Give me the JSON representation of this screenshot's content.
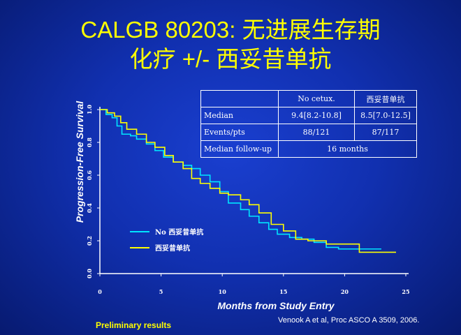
{
  "title": {
    "line1": "CALGB 80203: 无进展生存期",
    "line2": "化疗 +/- 西妥昔单抗"
  },
  "table": {
    "headers": [
      "",
      "No cetux.",
      "西妥昔单抗"
    ],
    "rows": [
      [
        "Median",
        "9.4[8.2-10.8]",
        "8.5[7.0-12.5]"
      ],
      [
        "Events/pts",
        "88/121",
        "87/117"
      ],
      [
        "Median follow-up",
        "16 months"
      ]
    ]
  },
  "footnotes": {
    "left": "Preliminary results",
    "right": "Venook A et al, Proc ASCO  A 3509, 2006."
  },
  "colors": {
    "title": "#ffff00",
    "series_cyan": "#00e5ff",
    "series_yellow": "#ffff00",
    "axis": "#ffffff"
  },
  "chart_data": {
    "type": "line",
    "xlabel": "Months from Study Entry",
    "ylabel": "Progression-Free Survival",
    "xlim": [
      0,
      25
    ],
    "ylim": [
      0,
      1.0
    ],
    "xticks": [
      "0",
      "5",
      "10",
      "15",
      "20",
      "25"
    ],
    "yticks": [
      "0.0",
      "0.2",
      "0.4",
      "0.6",
      "0.8",
      "1.0"
    ],
    "legend_placement": "lower-left",
    "series": [
      {
        "name": "No 西妥昔单抗",
        "color": "#00e5ff",
        "points": [
          [
            0,
            1.0
          ],
          [
            0.5,
            0.97
          ],
          [
            1,
            0.95
          ],
          [
            1.4,
            0.9
          ],
          [
            1.8,
            0.85
          ],
          [
            2.5,
            0.84
          ],
          [
            3,
            0.82
          ],
          [
            3.8,
            0.79
          ],
          [
            4.5,
            0.75
          ],
          [
            5.2,
            0.71
          ],
          [
            6,
            0.68
          ],
          [
            6.8,
            0.66
          ],
          [
            7.5,
            0.64
          ],
          [
            8.2,
            0.6
          ],
          [
            9,
            0.56
          ],
          [
            9.8,
            0.5
          ],
          [
            10.5,
            0.43
          ],
          [
            11.5,
            0.39
          ],
          [
            12.2,
            0.35
          ],
          [
            13,
            0.31
          ],
          [
            13.8,
            0.27
          ],
          [
            14.5,
            0.24
          ],
          [
            15.5,
            0.22
          ],
          [
            16.5,
            0.21
          ],
          [
            17.5,
            0.19
          ],
          [
            18.5,
            0.16
          ],
          [
            19.5,
            0.15
          ],
          [
            21,
            0.15
          ],
          [
            22,
            0.15
          ],
          [
            23,
            0.15
          ]
        ]
      },
      {
        "name": "西妥昔单抗",
        "color": "#ffff00",
        "points": [
          [
            0,
            1.0
          ],
          [
            0.6,
            0.98
          ],
          [
            1.2,
            0.96
          ],
          [
            1.7,
            0.92
          ],
          [
            2.2,
            0.88
          ],
          [
            3,
            0.85
          ],
          [
            3.8,
            0.8
          ],
          [
            4.5,
            0.77
          ],
          [
            5.3,
            0.72
          ],
          [
            6,
            0.68
          ],
          [
            6.8,
            0.64
          ],
          [
            7.5,
            0.58
          ],
          [
            8.2,
            0.55
          ],
          [
            9,
            0.52
          ],
          [
            9.8,
            0.49
          ],
          [
            10.5,
            0.48
          ],
          [
            11.5,
            0.45
          ],
          [
            12.2,
            0.42
          ],
          [
            13,
            0.37
          ],
          [
            14,
            0.3
          ],
          [
            15,
            0.26
          ],
          [
            16,
            0.21
          ],
          [
            17,
            0.2
          ],
          [
            18.5,
            0.18
          ],
          [
            19.5,
            0.18
          ],
          [
            20.5,
            0.18
          ],
          [
            21.2,
            0.13
          ],
          [
            22.5,
            0.13
          ],
          [
            23.5,
            0.13
          ],
          [
            24.2,
            0.13
          ]
        ]
      }
    ]
  }
}
